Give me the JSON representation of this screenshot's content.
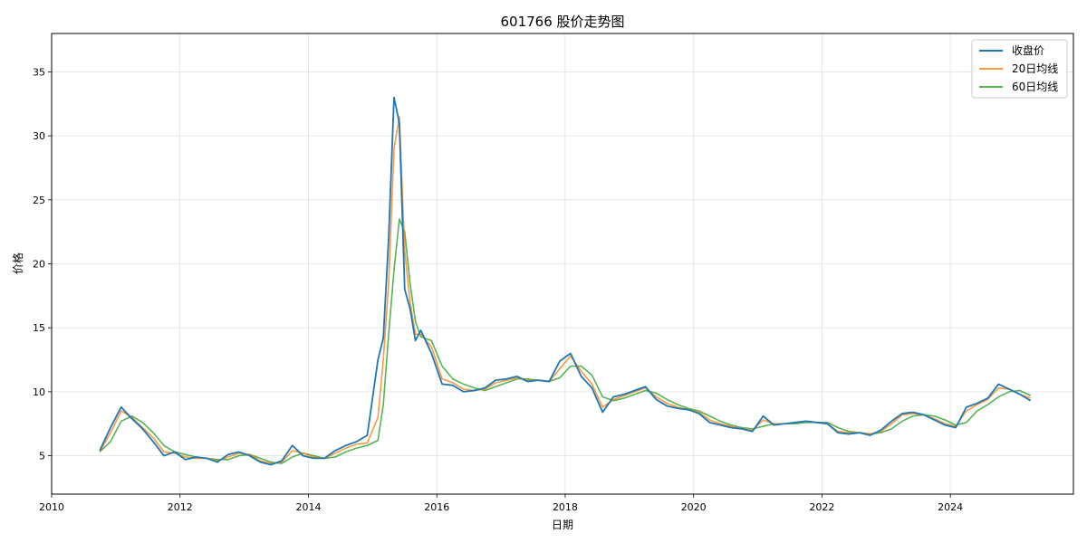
{
  "chart_data": {
    "type": "line",
    "title": "601766 股价走势图",
    "xlabel": "日期",
    "ylabel": "价格",
    "xlim": [
      "2010-01-01",
      "2025-12-01"
    ],
    "ylim": [
      2,
      38
    ],
    "x_ticks": [
      "2010",
      "2012",
      "2014",
      "2016",
      "2018",
      "2020",
      "2022",
      "2024"
    ],
    "y_ticks": [
      5,
      10,
      15,
      20,
      25,
      30,
      35
    ],
    "grid": true,
    "legend_position": "top-right",
    "x": [
      "2010-10",
      "2010-12",
      "2011-02",
      "2011-04",
      "2011-06",
      "2011-08",
      "2011-10",
      "2011-12",
      "2012-02",
      "2012-04",
      "2012-06",
      "2012-08",
      "2012-10",
      "2012-12",
      "2013-02",
      "2013-04",
      "2013-06",
      "2013-08",
      "2013-10",
      "2013-12",
      "2014-02",
      "2014-04",
      "2014-06",
      "2014-08",
      "2014-10",
      "2014-12",
      "2015-02",
      "2015-03",
      "2015-04",
      "2015-05",
      "2015-06",
      "2015-07",
      "2015-08",
      "2015-09",
      "2015-10",
      "2015-12",
      "2016-02",
      "2016-04",
      "2016-06",
      "2016-08",
      "2016-10",
      "2016-12",
      "2017-02",
      "2017-04",
      "2017-06",
      "2017-08",
      "2017-10",
      "2017-12",
      "2018-02",
      "2018-04",
      "2018-06",
      "2018-08",
      "2018-10",
      "2018-12",
      "2019-02",
      "2019-04",
      "2019-06",
      "2019-08",
      "2019-10",
      "2019-12",
      "2020-02",
      "2020-04",
      "2020-06",
      "2020-08",
      "2020-10",
      "2020-12",
      "2021-02",
      "2021-04",
      "2021-06",
      "2021-08",
      "2021-10",
      "2021-12",
      "2022-02",
      "2022-04",
      "2022-06",
      "2022-08",
      "2022-10",
      "2022-12",
      "2023-02",
      "2023-04",
      "2023-06",
      "2023-08",
      "2023-10",
      "2023-12",
      "2024-02",
      "2024-04",
      "2024-06",
      "2024-08",
      "2024-10",
      "2024-12",
      "2025-02",
      "2025-04"
    ],
    "series": [
      {
        "name": "收盘价",
        "color": "#1f77b4",
        "values": [
          5.4,
          7.2,
          8.8,
          7.9,
          7.1,
          6.1,
          5.0,
          5.3,
          4.7,
          4.9,
          4.8,
          4.5,
          5.1,
          5.3,
          5.0,
          4.5,
          4.3,
          4.6,
          5.8,
          5.0,
          4.8,
          4.8,
          5.4,
          5.8,
          6.1,
          6.6,
          12.5,
          14.2,
          22.0,
          33.0,
          31.0,
          18.0,
          16.5,
          14.0,
          14.8,
          13.0,
          10.6,
          10.5,
          10.0,
          10.1,
          10.3,
          10.9,
          11.0,
          11.2,
          10.8,
          10.9,
          10.8,
          12.4,
          13.0,
          11.2,
          10.3,
          8.4,
          9.6,
          9.8,
          10.1,
          10.4,
          9.4,
          8.9,
          8.7,
          8.6,
          8.3,
          7.6,
          7.4,
          7.2,
          7.1,
          6.9,
          8.1,
          7.4,
          7.5,
          7.6,
          7.7,
          7.6,
          7.5,
          6.8,
          6.7,
          6.8,
          6.6,
          7.0,
          7.7,
          8.3,
          8.4,
          8.2,
          7.8,
          7.4,
          7.2,
          8.8,
          9.1,
          9.5,
          10.6,
          10.2,
          9.8,
          9.3
        ]
      },
      {
        "name": "20日均线",
        "color": "#ff7f0e",
        "values": [
          5.3,
          6.8,
          8.5,
          8.0,
          7.2,
          6.4,
          5.3,
          5.2,
          4.9,
          4.8,
          4.8,
          4.6,
          4.9,
          5.2,
          5.1,
          4.6,
          4.4,
          4.5,
          5.4,
          5.2,
          4.9,
          4.8,
          5.2,
          5.6,
          5.9,
          6.0,
          8.0,
          12.5,
          18.5,
          29.0,
          31.5,
          21.0,
          17.0,
          14.5,
          14.5,
          13.5,
          11.0,
          10.7,
          10.2,
          10.1,
          10.2,
          10.7,
          10.9,
          11.1,
          10.9,
          10.9,
          10.8,
          11.8,
          12.8,
          11.6,
          10.6,
          8.8,
          9.4,
          9.7,
          10.0,
          10.3,
          9.6,
          9.1,
          8.8,
          8.6,
          8.4,
          7.8,
          7.5,
          7.3,
          7.1,
          7.0,
          7.8,
          7.5,
          7.5,
          7.6,
          7.7,
          7.6,
          7.5,
          6.9,
          6.8,
          6.8,
          6.7,
          6.9,
          7.5,
          8.2,
          8.3,
          8.2,
          7.9,
          7.5,
          7.3,
          8.5,
          9.0,
          9.4,
          10.3,
          10.2,
          9.8,
          9.5
        ]
      },
      {
        "name": "60日均线",
        "color": "#2ca02c",
        "values": [
          5.3,
          6.1,
          7.7,
          8.1,
          7.6,
          6.8,
          5.8,
          5.3,
          5.1,
          4.9,
          4.8,
          4.7,
          4.7,
          5.0,
          5.1,
          4.8,
          4.5,
          4.4,
          4.9,
          5.2,
          5.0,
          4.8,
          4.9,
          5.3,
          5.6,
          5.8,
          6.2,
          9.0,
          14.5,
          19.5,
          23.5,
          22.5,
          18.5,
          15.5,
          14.3,
          14.0,
          12.0,
          11.0,
          10.6,
          10.3,
          10.1,
          10.4,
          10.7,
          11.0,
          11.0,
          10.9,
          10.8,
          11.1,
          12.0,
          12.0,
          11.3,
          9.6,
          9.3,
          9.5,
          9.8,
          10.1,
          9.9,
          9.4,
          9.0,
          8.7,
          8.5,
          8.1,
          7.7,
          7.4,
          7.2,
          7.1,
          7.3,
          7.5,
          7.5,
          7.5,
          7.6,
          7.6,
          7.6,
          7.2,
          6.9,
          6.8,
          6.7,
          6.8,
          7.1,
          7.7,
          8.1,
          8.2,
          8.1,
          7.8,
          7.4,
          7.6,
          8.5,
          9.0,
          9.6,
          10.0,
          10.1,
          9.7
        ]
      }
    ]
  }
}
